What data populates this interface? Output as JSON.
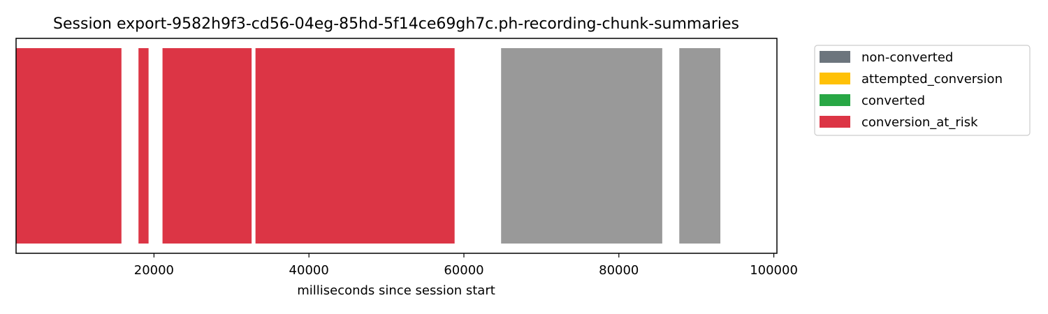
{
  "chart_data": {
    "type": "bar",
    "orientation": "horizontal-timeline",
    "title": "Session export-9582h9f3-cd56-04eg-85hd-5f14ce69gh7c.ph-recording-chunk-summaries",
    "xlabel": "milliseconds since session start",
    "ylabel": "",
    "xlim": [
      2200,
      100400
    ],
    "xticks": [
      20000,
      40000,
      60000,
      80000,
      100000
    ],
    "xtick_labels": [
      "20000",
      "40000",
      "60000",
      "80000",
      "100000"
    ],
    "grid": false,
    "legend_placement": "outside-top-right",
    "legend": [
      {
        "label": "non-converted",
        "color": "#6c757d"
      },
      {
        "label": "attempted_conversion",
        "color": "#ffc107"
      },
      {
        "label": "converted",
        "color": "#28a745"
      },
      {
        "label": "conversion_at_risk",
        "color": "#dc3545"
      }
    ],
    "segments": [
      {
        "start": 2200,
        "end": 15800,
        "status": "conversion_at_risk",
        "color": "#dc3545"
      },
      {
        "start": 18000,
        "end": 19300,
        "status": "conversion_at_risk",
        "color": "#dc3545"
      },
      {
        "start": 21100,
        "end": 32600,
        "status": "conversion_at_risk",
        "color": "#dc3545"
      },
      {
        "start": 33100,
        "end": 58800,
        "status": "conversion_at_risk",
        "color": "#dc3545"
      },
      {
        "start": 64800,
        "end": 85600,
        "status": "non-converted",
        "color": "#999999"
      },
      {
        "start": 87800,
        "end": 93100,
        "status": "non-converted",
        "color": "#999999"
      }
    ]
  }
}
